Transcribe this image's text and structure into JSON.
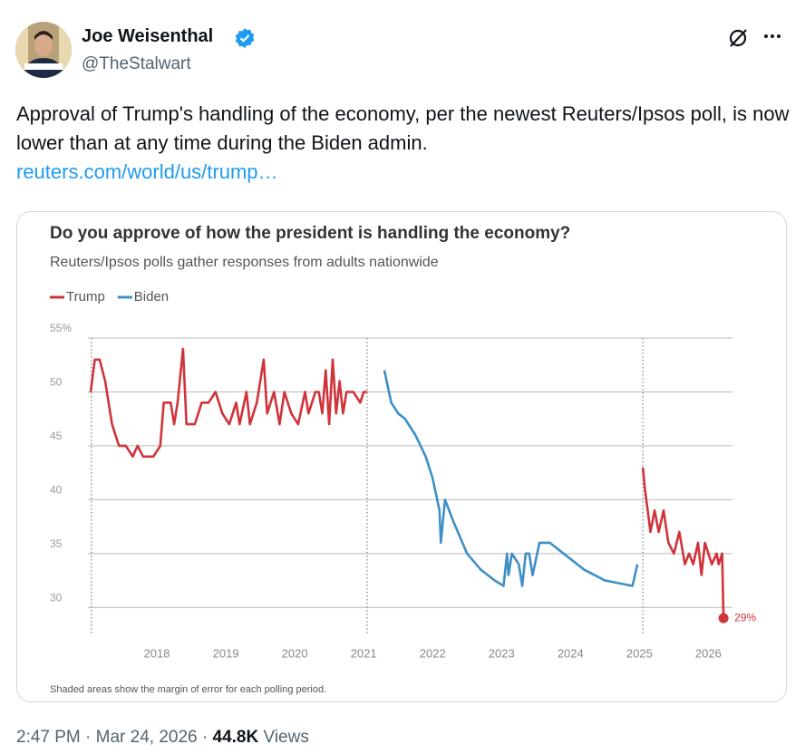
{
  "author": {
    "name": "Joe Weisenthal",
    "handle": "@TheStalwart"
  },
  "tweet": {
    "text": "Approval of Trump's handling of the economy, per the newest Reuters/Ipsos poll, is now lower than at any time during the Biden admin.",
    "link": "reuters.com/world/us/trump…"
  },
  "chart_data": {
    "type": "line",
    "title": "Do you approve of how the president is handling the economy?",
    "subtitle": "Reuters/Ipsos polls gather responses from adults nationwide",
    "footnote": "Shaded areas show the margin of error for each polling period.",
    "xlim": [
      2017,
      2026.35
    ],
    "xticks": [
      2018,
      2019,
      2020,
      2021,
      2022,
      2023,
      2024,
      2025,
      2026
    ],
    "ylim": [
      27.5,
      55
    ],
    "yticks": [
      30,
      35,
      40,
      45,
      50,
      {
        "value": 55,
        "label": "55%"
      }
    ],
    "grid": true,
    "vlines": [
      2017.05,
      2021.05,
      2025.05
    ],
    "series": [
      {
        "name": "Trump",
        "color": "#d0343a",
        "x": [
          2017.04,
          2017.1,
          2017.17,
          2017.25,
          2017.35,
          2017.45,
          2017.55,
          2017.65,
          2017.72,
          2017.8,
          2017.95,
          2018.05,
          2018.1,
          2018.2,
          2018.25,
          2018.3,
          2018.38,
          2018.43,
          2018.55,
          2018.65,
          2018.75,
          2018.85,
          2018.95,
          2019.05,
          2019.15,
          2019.2,
          2019.3,
          2019.35,
          2019.45,
          2019.55,
          2019.6,
          2019.7,
          2019.78,
          2019.85,
          2019.95,
          2020.05,
          2020.15,
          2020.2,
          2020.3,
          2020.35,
          2020.4,
          2020.45,
          2020.5,
          2020.55,
          2020.6,
          2020.65,
          2020.7,
          2020.75,
          2020.85,
          2020.95,
          2021.0,
          2021.05,
          null,
          2025.05,
          2025.08,
          2025.12,
          2025.16,
          2025.22,
          2025.28,
          2025.35,
          2025.42,
          2025.5,
          2025.58,
          2025.66,
          2025.72,
          2025.78,
          2025.85,
          2025.9,
          2025.95,
          2026.05,
          2026.12,
          2026.15,
          2026.2,
          2026.22
        ],
        "values": [
          50,
          53,
          53,
          51,
          47,
          45,
          45,
          44,
          45,
          44,
          44,
          45,
          49,
          49,
          47,
          49,
          54,
          47,
          47,
          49,
          49,
          50,
          48,
          47,
          49,
          47,
          50,
          47,
          49,
          53,
          48,
          50,
          47,
          50,
          48,
          47,
          50,
          48,
          50,
          50,
          48,
          52,
          47,
          53,
          48,
          51,
          48,
          50,
          50,
          49,
          50,
          50,
          null,
          43,
          41,
          39,
          37,
          39,
          37,
          39,
          36,
          35,
          37,
          34,
          35,
          34,
          36,
          33,
          36,
          34,
          35,
          34,
          35,
          29
        ]
      },
      {
        "name": "Biden",
        "color": "#3d8fc6",
        "x": [
          2021.3,
          2021.4,
          2021.5,
          2021.6,
          2021.75,
          2021.9,
          2022.0,
          2022.1,
          2022.12,
          2022.18,
          2022.3,
          2022.5,
          2022.7,
          2022.9,
          2023.03,
          2023.08,
          2023.1,
          2023.15,
          2023.25,
          2023.3,
          2023.35,
          2023.4,
          2023.45,
          2023.55,
          2023.7,
          2023.9,
          2024.2,
          2024.5,
          2024.9,
          2024.97
        ],
        "values": [
          52,
          49,
          48,
          47.5,
          46,
          44,
          42,
          39,
          36,
          40,
          38,
          35,
          33.5,
          32.5,
          32,
          35,
          33,
          35,
          34,
          32,
          35,
          35,
          33,
          36,
          36,
          35,
          33.5,
          32.5,
          32,
          34
        ]
      }
    ],
    "annotations": [
      {
        "text": "29%",
        "x": 2026.22,
        "y": 29
      }
    ]
  },
  "footer": {
    "time": "2:47 PM",
    "separator": "·",
    "date": "Mar 24, 2026",
    "views": "44.8K",
    "views_label": "Views"
  }
}
